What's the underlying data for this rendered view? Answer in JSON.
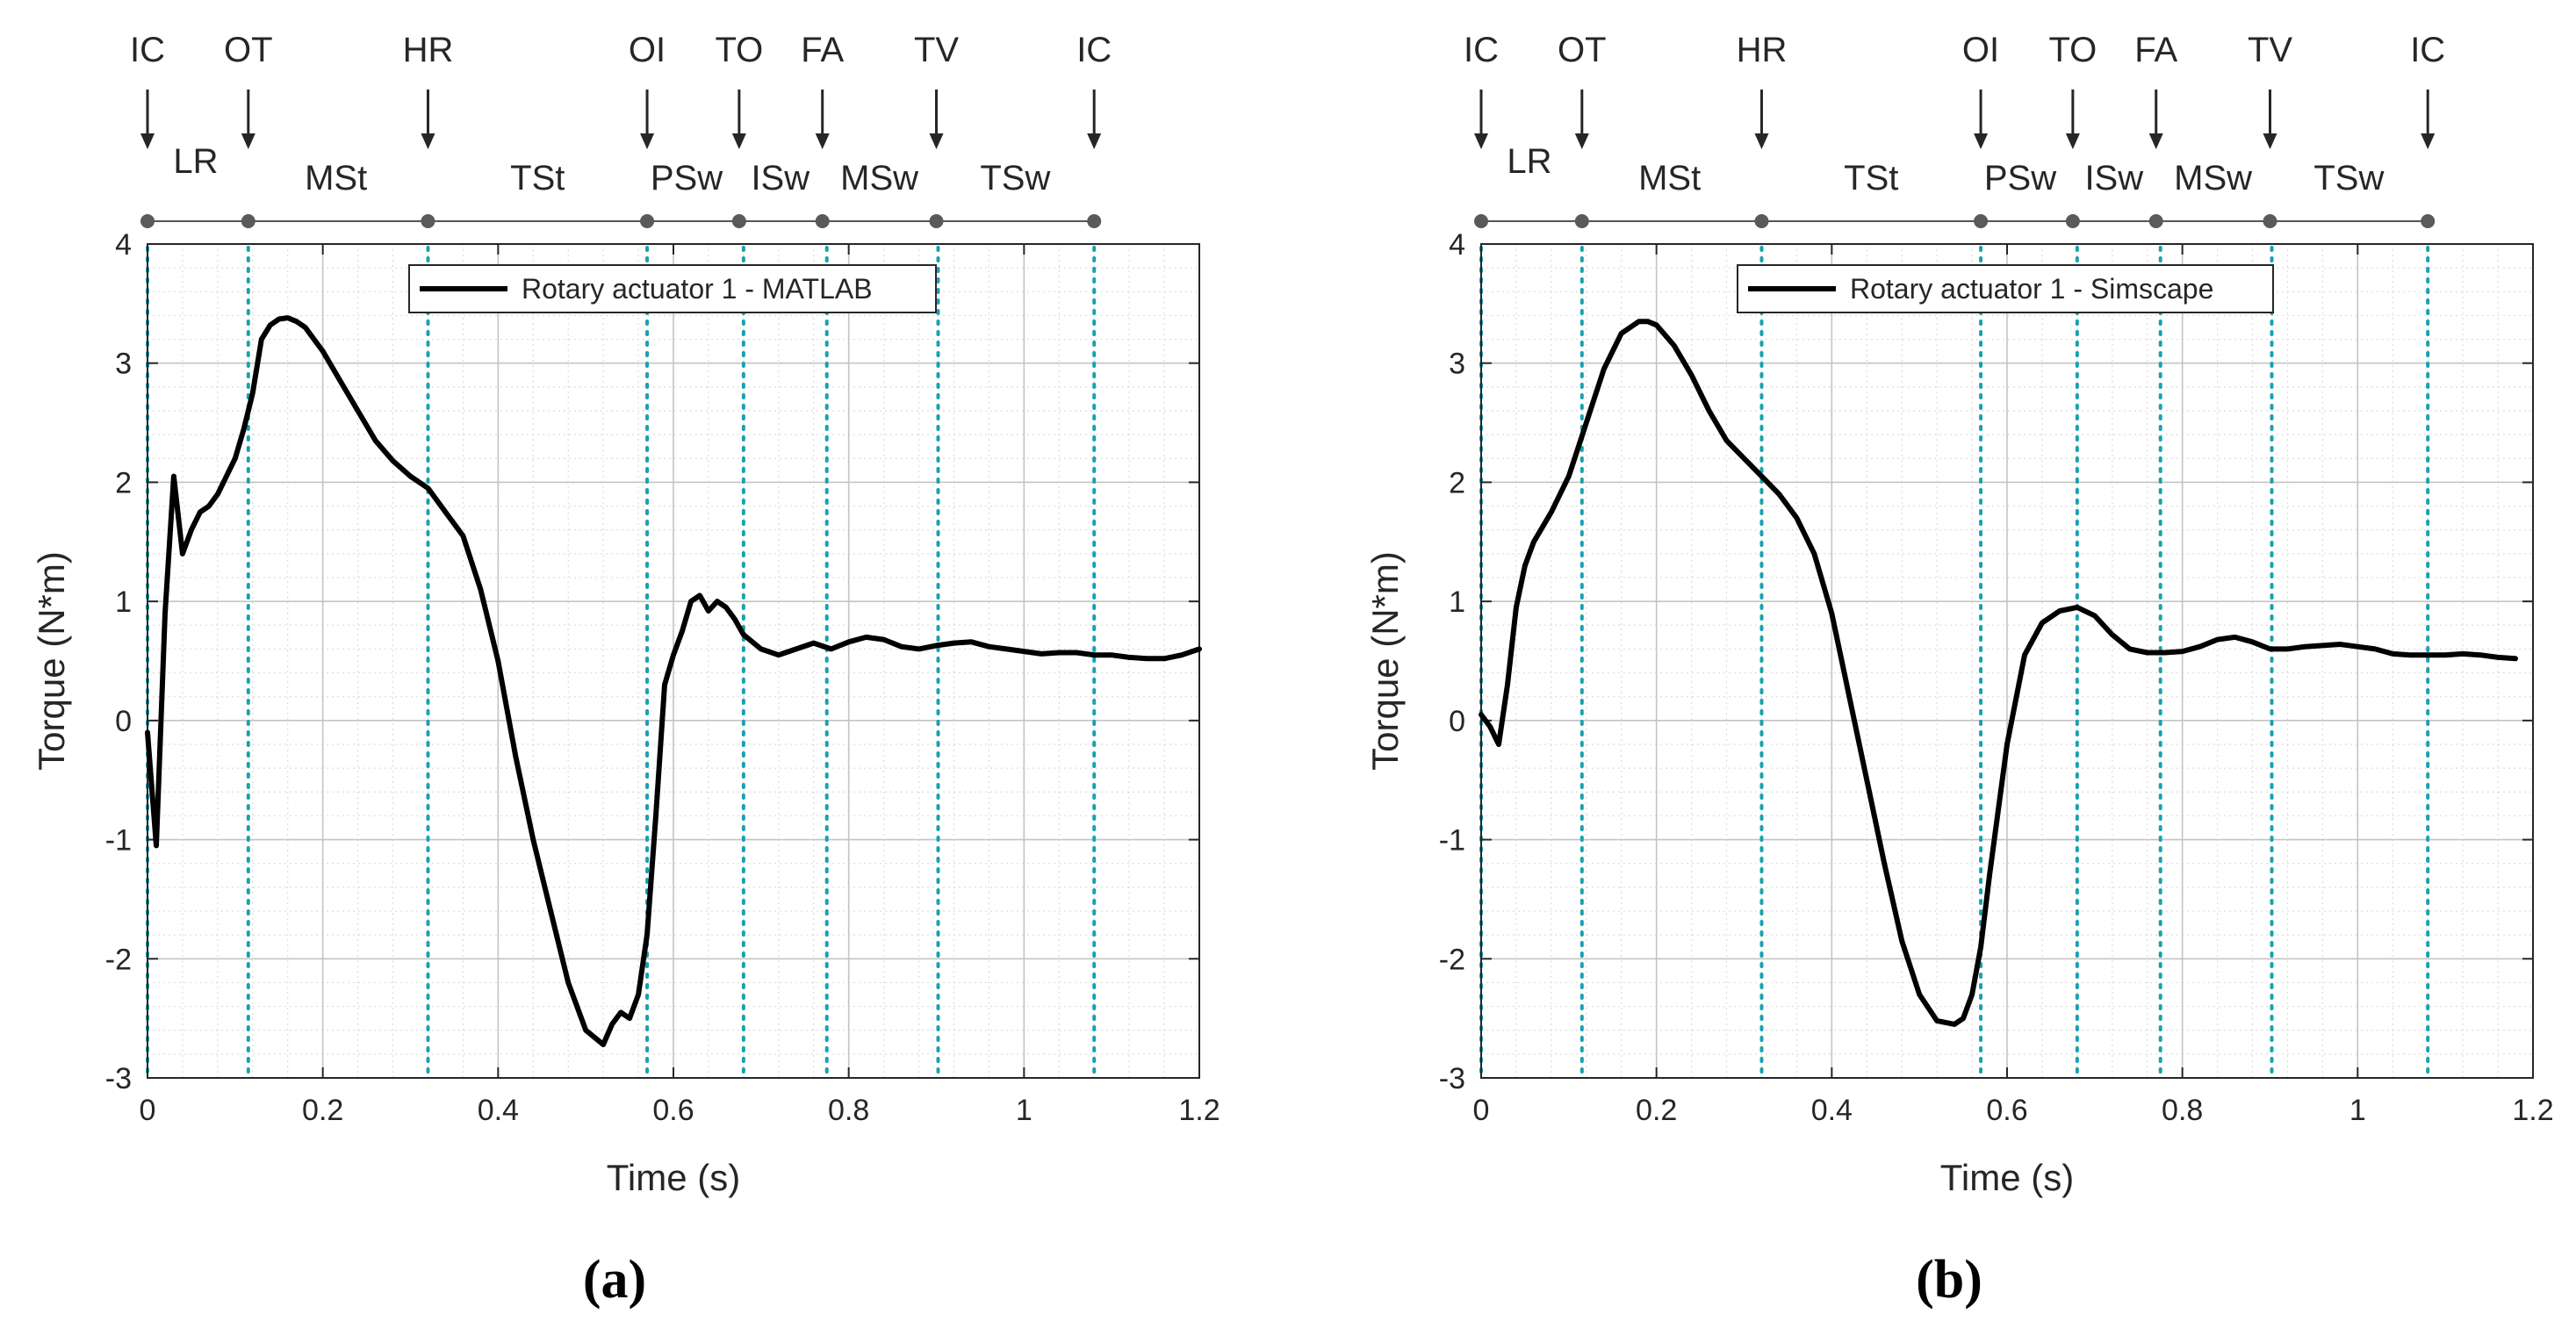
{
  "figure": {
    "panels": [
      {
        "caption": "(a)",
        "legend": "Rotary actuator 1 - MATLAB"
      },
      {
        "caption": "(b)",
        "legend": "Rotary actuator 1 - Simscape"
      }
    ]
  },
  "gait": {
    "events": [
      {
        "label": "IC",
        "t": 0.0
      },
      {
        "label": "OT",
        "t": 0.115
      },
      {
        "label": "HR",
        "t": 0.32
      },
      {
        "label": "OI",
        "t": 0.57
      },
      {
        "label": "TO",
        "t": 0.675
      },
      {
        "label": "FA",
        "t": 0.77
      },
      {
        "label": "TV",
        "t": 0.9
      },
      {
        "label": "IC",
        "t": 1.08
      }
    ],
    "phases": [
      {
        "label": "LR",
        "t": 0.055
      },
      {
        "label": "MSt",
        "t": 0.215
      },
      {
        "label": "TSt",
        "t": 0.445
      },
      {
        "label": "PSw",
        "t": 0.615
      },
      {
        "label": "ISw",
        "t": 0.722
      },
      {
        "label": "MSw",
        "t": 0.835
      },
      {
        "label": "TSw",
        "t": 0.99
      }
    ],
    "dotted_lines_t": [
      0.0,
      0.115,
      0.32,
      0.57,
      0.68,
      0.775,
      0.902,
      1.08
    ]
  },
  "chart_data": [
    {
      "type": "line",
      "title": "",
      "xlabel": "Time (s)",
      "ylabel": "Torque (N*m)",
      "xlim": [
        0,
        1.2
      ],
      "ylim": [
        -3,
        4
      ],
      "xticks": [
        0,
        0.2,
        0.4,
        0.6,
        0.8,
        1,
        1.2
      ],
      "xtick_labels": [
        "0",
        "0.2",
        "0.4",
        "0.6",
        "0.8",
        "1",
        "1.2"
      ],
      "yticks": [
        -3,
        -2,
        -1,
        0,
        1,
        2,
        3,
        4
      ],
      "ytick_labels": [
        "-3",
        "-2",
        "-1",
        "0",
        "1",
        "2",
        "3",
        "4"
      ],
      "grid": true,
      "legend_position": "top-center",
      "series": [
        {
          "name": "Rotary actuator 1 - MATLAB",
          "color": "#000000",
          "x": [
            0,
            0.01,
            0.02,
            0.03,
            0.04,
            0.05,
            0.06,
            0.07,
            0.08,
            0.09,
            0.1,
            0.11,
            0.12,
            0.13,
            0.14,
            0.15,
            0.16,
            0.17,
            0.18,
            0.19,
            0.2,
            0.22,
            0.24,
            0.26,
            0.28,
            0.3,
            0.32,
            0.34,
            0.36,
            0.38,
            0.4,
            0.42,
            0.44,
            0.46,
            0.48,
            0.5,
            0.52,
            0.53,
            0.54,
            0.55,
            0.56,
            0.57,
            0.58,
            0.59,
            0.6,
            0.61,
            0.62,
            0.63,
            0.64,
            0.65,
            0.66,
            0.67,
            0.68,
            0.7,
            0.72,
            0.74,
            0.76,
            0.78,
            0.8,
            0.82,
            0.84,
            0.86,
            0.88,
            0.9,
            0.92,
            0.94,
            0.96,
            0.98,
            1.0,
            1.02,
            1.04,
            1.06,
            1.08,
            1.1,
            1.12,
            1.14,
            1.16,
            1.18,
            1.2
          ],
          "y": [
            -0.1,
            -1.05,
            0.9,
            2.05,
            1.4,
            1.6,
            1.75,
            1.8,
            1.9,
            2.05,
            2.2,
            2.45,
            2.75,
            3.2,
            3.32,
            3.37,
            3.38,
            3.35,
            3.3,
            3.2,
            3.1,
            2.85,
            2.6,
            2.35,
            2.18,
            2.05,
            1.95,
            1.75,
            1.55,
            1.1,
            0.5,
            -0.3,
            -1.0,
            -1.6,
            -2.2,
            -2.6,
            -2.72,
            -2.55,
            -2.45,
            -2.5,
            -2.3,
            -1.8,
            -0.8,
            0.3,
            0.55,
            0.75,
            1.0,
            1.05,
            0.92,
            1.0,
            0.95,
            0.85,
            0.72,
            0.6,
            0.55,
            0.6,
            0.65,
            0.6,
            0.66,
            0.7,
            0.68,
            0.62,
            0.6,
            0.63,
            0.65,
            0.66,
            0.62,
            0.6,
            0.58,
            0.56,
            0.57,
            0.57,
            0.55,
            0.55,
            0.53,
            0.52,
            0.52,
            0.55,
            0.6
          ]
        }
      ]
    },
    {
      "type": "line",
      "title": "",
      "xlabel": "Time (s)",
      "ylabel": "Torque (N*m)",
      "xlim": [
        0,
        1.2
      ],
      "ylim": [
        -3,
        4
      ],
      "xticks": [
        0,
        0.2,
        0.4,
        0.6,
        0.8,
        1,
        1.2
      ],
      "xtick_labels": [
        "0",
        "0.2",
        "0.4",
        "0.6",
        "0.8",
        "1",
        "1.2"
      ],
      "yticks": [
        -3,
        -2,
        -1,
        0,
        1,
        2,
        3,
        4
      ],
      "ytick_labels": [
        "-3",
        "-2",
        "-1",
        "0",
        "1",
        "2",
        "3",
        "4"
      ],
      "grid": true,
      "legend_position": "top-center",
      "series": [
        {
          "name": "Rotary actuator 1 - Simscape",
          "color": "#000000",
          "x": [
            0,
            0.01,
            0.02,
            0.03,
            0.04,
            0.05,
            0.06,
            0.08,
            0.1,
            0.12,
            0.14,
            0.16,
            0.18,
            0.19,
            0.2,
            0.22,
            0.24,
            0.26,
            0.28,
            0.3,
            0.32,
            0.34,
            0.36,
            0.38,
            0.4,
            0.42,
            0.44,
            0.46,
            0.48,
            0.5,
            0.52,
            0.54,
            0.55,
            0.56,
            0.57,
            0.58,
            0.6,
            0.62,
            0.64,
            0.66,
            0.68,
            0.7,
            0.72,
            0.74,
            0.76,
            0.78,
            0.8,
            0.82,
            0.84,
            0.86,
            0.88,
            0.9,
            0.92,
            0.94,
            0.96,
            0.98,
            1.0,
            1.02,
            1.04,
            1.06,
            1.08,
            1.1,
            1.12,
            1.14,
            1.16,
            1.18
          ],
          "y": [
            0.05,
            -0.05,
            -0.2,
            0.3,
            0.95,
            1.3,
            1.5,
            1.75,
            2.05,
            2.5,
            2.95,
            3.25,
            3.35,
            3.35,
            3.32,
            3.15,
            2.9,
            2.6,
            2.35,
            2.2,
            2.05,
            1.9,
            1.7,
            1.4,
            0.9,
            0.2,
            -0.5,
            -1.2,
            -1.85,
            -2.3,
            -2.52,
            -2.55,
            -2.5,
            -2.3,
            -1.9,
            -1.3,
            -0.2,
            0.55,
            0.82,
            0.92,
            0.95,
            0.88,
            0.72,
            0.6,
            0.57,
            0.57,
            0.58,
            0.62,
            0.68,
            0.7,
            0.66,
            0.6,
            0.6,
            0.62,
            0.63,
            0.64,
            0.62,
            0.6,
            0.56,
            0.55,
            0.55,
            0.55,
            0.56,
            0.55,
            0.53,
            0.52
          ]
        }
      ]
    }
  ]
}
